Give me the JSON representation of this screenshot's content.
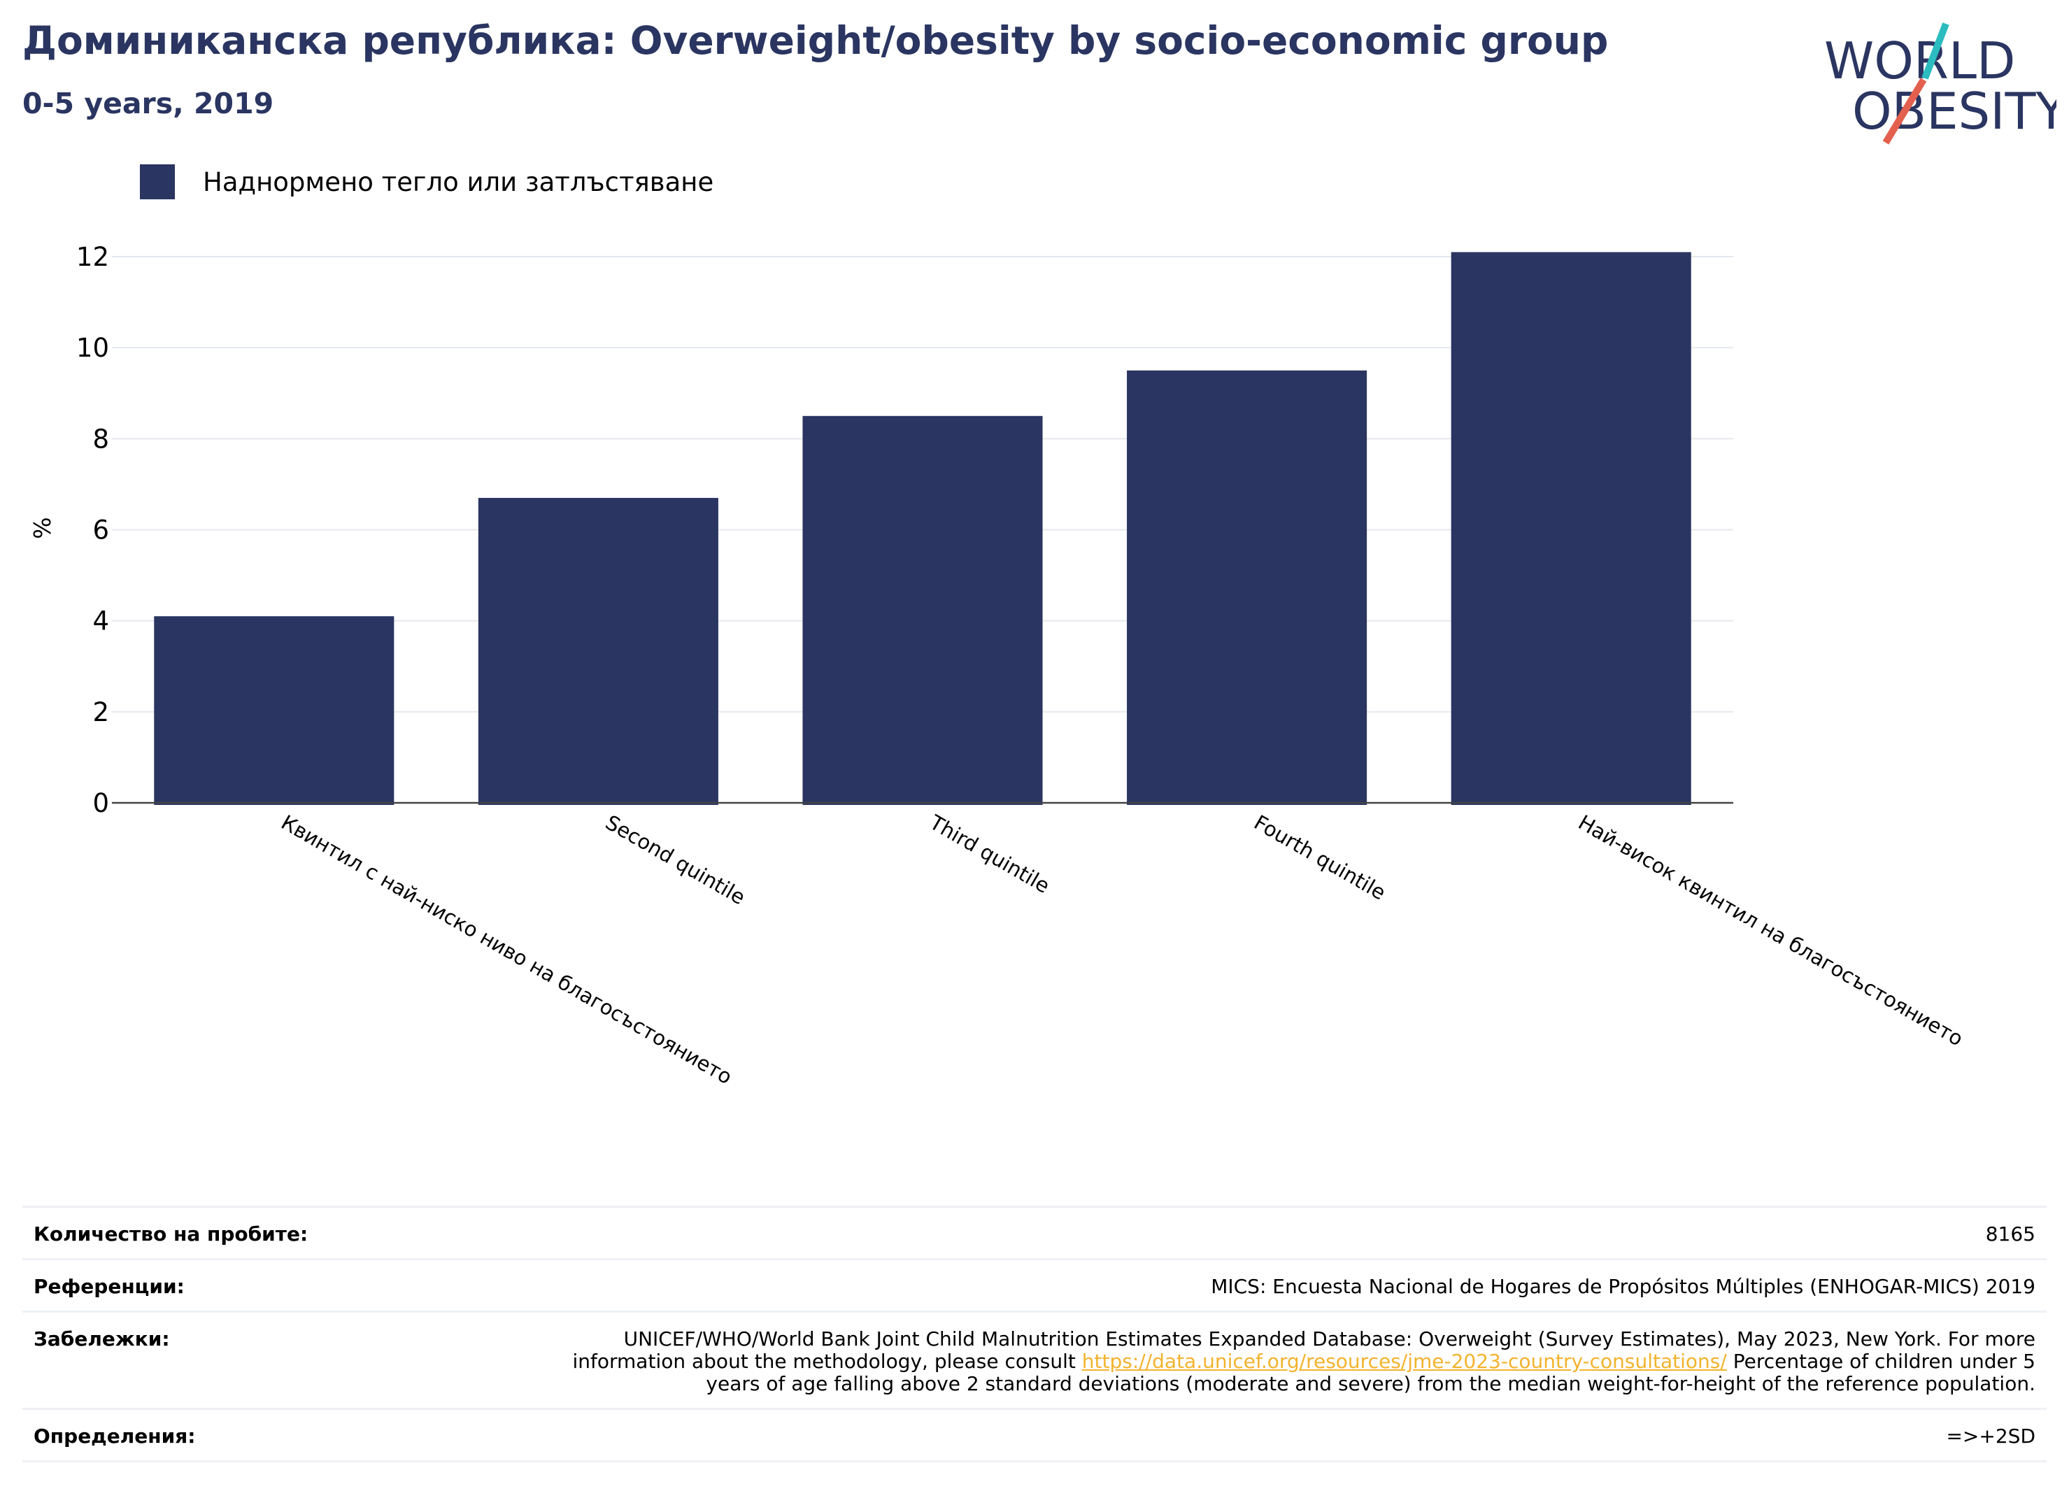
{
  "header": {
    "title": "Доминиканска република: Overweight/obesity by socio-economic group",
    "subtitle": "0-5 years, 2019"
  },
  "logo": {
    "text_line1": "WORLD",
    "text_line2": "OBESITY",
    "colors": {
      "text": "#2a3561",
      "slash_teal": "#2bbcbf",
      "slash_red": "#e3604e"
    }
  },
  "legend": {
    "items": [
      {
        "label": "Наднормено тегло или затлъстяване",
        "color": "#2a3561"
      }
    ]
  },
  "chart_data": {
    "type": "bar",
    "categories": [
      "Квинтил с най-ниско ниво на благосъстоянието",
      "Second quintile",
      "Third quintile",
      "Fourth quintile",
      "Най-висок квинтил на благосъстоянието"
    ],
    "series": [
      {
        "name": "Наднормено тегло или затлъстяване",
        "values": [
          4.1,
          6.7,
          8.5,
          9.5,
          12.1
        ],
        "color": "#2a3561"
      }
    ],
    "ylabel": "%",
    "ylim": [
      0,
      12.2
    ],
    "yticks": [
      0,
      2,
      4,
      6,
      8,
      10,
      12
    ],
    "grid": true,
    "legend_position": "top-left"
  },
  "footer": {
    "sample_label": "Количество на пробите:",
    "sample_value": "8165",
    "references_label": "Референции:",
    "references_value": "MICS: Encuesta Nacional de Hogares de Propósitos Múltiples (ENHOGAR-MICS) 2019",
    "notes_label": "Забележки:",
    "notes_before": "UNICEF/WHO/World Bank Joint Child Malnutrition Estimates Expanded Database: Overweight (Survey Estimates), May 2023, New York. For more information about the methodology, please consult ",
    "notes_link": "https://data.unicef.org/resources/jme-2023-country-consultations/",
    "notes_after": " Percentage of children under 5 years of age falling above 2 standard deviations (moderate and severe) from the median weight-for-height of the reference population.",
    "definitions_label": "Определения:",
    "definitions_value": "=>+2SD"
  }
}
